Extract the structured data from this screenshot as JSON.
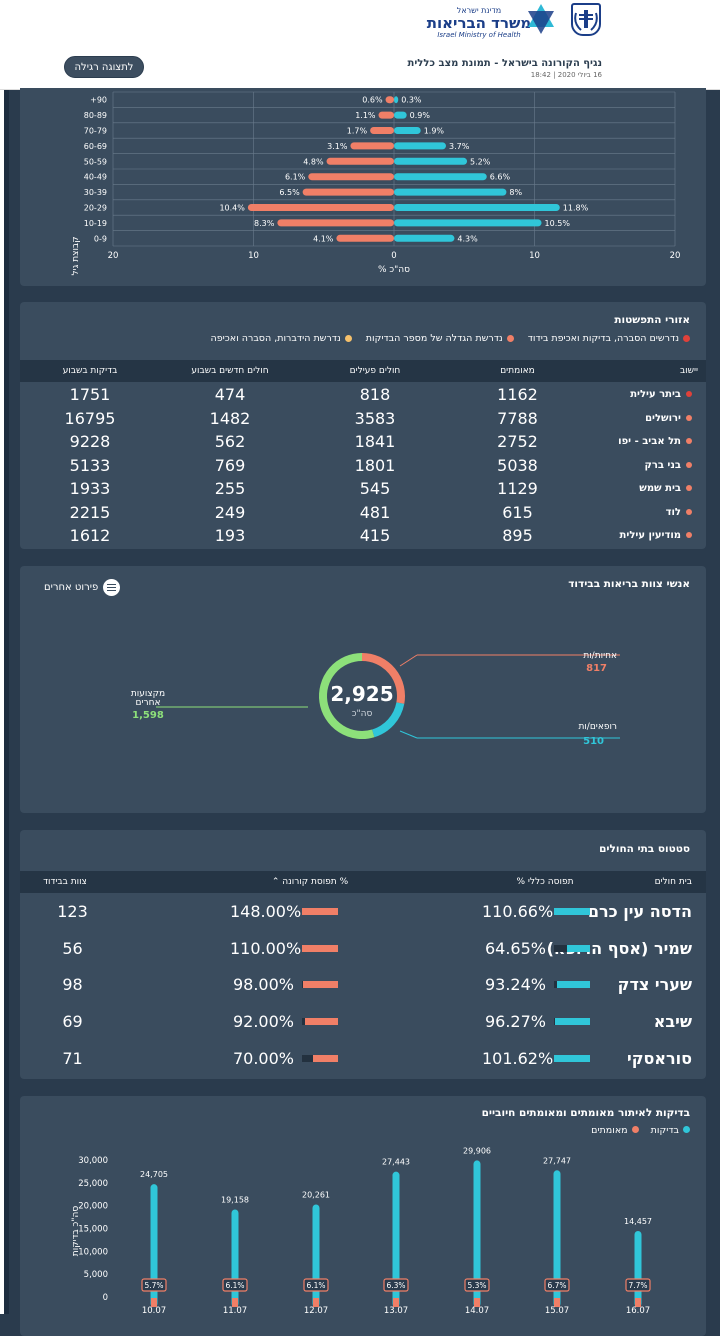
{
  "header": {
    "simple_view_button": "לתצוגה רגילה",
    "title": "נגיף הקורונה בישראל - תמונת מצב כללית",
    "subtitle": "16 ביולי 2020 | 18:42",
    "logo_state": "מדינת ישראל",
    "logo_ministry": "משרד הבריאות",
    "logo_english": "Israel Ministry of Health"
  },
  "age_chart": {
    "ylabel": "קבוצת גיל",
    "xlabel": "% סה\"כ",
    "chart_data": {
      "type": "bar",
      "orientation": "horizontal-diverging",
      "categories": [
        "+90",
        "80-89",
        "70-79",
        "60-69",
        "50-59",
        "40-49",
        "30-39",
        "20-29",
        "10-19",
        "0-9"
      ],
      "series": [
        {
          "values": [
            0.6,
            1.1,
            1.7,
            3.1,
            4.8,
            6.1,
            6.5,
            10.4,
            8.3,
            4.1
          ],
          "color": "#f07f67"
        },
        {
          "values": [
            0.3,
            0.9,
            1.9,
            3.7,
            5.2,
            6.6,
            8,
            11.8,
            10.5,
            4.3
          ],
          "color": "#30c6d9"
        }
      ],
      "xticks": [
        "20",
        "10",
        "0",
        "10",
        "20"
      ],
      "xlim": [
        -20,
        20
      ],
      "grid": true
    }
  },
  "spread": {
    "title": "אזורי התפשטות",
    "legend": [
      {
        "label": "נדרשים הסברה, בדיקות ואכיפת בידוד",
        "color": "#e0413a"
      },
      {
        "label": "נדרשת הגדלה של מספר הבדיקות",
        "color": "#f07f67"
      },
      {
        "label": "נדרשת הידברות, הסברה ואכיפה",
        "color": "#f5c06b"
      }
    ],
    "columns": [
      "יישוב",
      "מאומתים",
      "חולים פעילים",
      "חולים חדשים בשבוע",
      "בדיקות בשבוע"
    ],
    "rows": [
      {
        "name": "ביתר עילית",
        "confirmed": "1162",
        "active": "818",
        "new_week": "474",
        "tests_week": "1751",
        "color": "#e0413a"
      },
      {
        "name": "ירושלים",
        "confirmed": "7788",
        "active": "3583",
        "new_week": "1482",
        "tests_week": "16795",
        "color": "#f07f67"
      },
      {
        "name": "תל אביב - יפו",
        "confirmed": "2752",
        "active": "1841",
        "new_week": "562",
        "tests_week": "9228",
        "color": "#f07f67"
      },
      {
        "name": "בני ברק",
        "confirmed": "5038",
        "active": "1801",
        "new_week": "769",
        "tests_week": "5133",
        "color": "#f07f67"
      },
      {
        "name": "בית שמש",
        "confirmed": "1129",
        "active": "545",
        "new_week": "255",
        "tests_week": "1933",
        "color": "#f07f67"
      },
      {
        "name": "לוד",
        "confirmed": "615",
        "active": "481",
        "new_week": "249",
        "tests_week": "2215",
        "color": "#f07f67"
      },
      {
        "name": "מודיעין עילית",
        "confirmed": "895",
        "active": "415",
        "new_week": "193",
        "tests_week": "1612",
        "color": "#f07f67"
      }
    ]
  },
  "staff": {
    "title": "אנשי צוות בריאות בבידוד",
    "others_button": "פירוט אחרים",
    "total": "2,925",
    "total_label": "סה\"כ",
    "nurses_label": "אחיות/ות",
    "nurses_value": "817",
    "doctors_label": "רופאים/ות",
    "doctors_value": "510",
    "others_label_1": "מקצועות",
    "others_label_2": "אחרים",
    "others_value": "1,598",
    "chart_data": {
      "type": "pie",
      "values": [
        817,
        510,
        1598
      ],
      "colors": [
        "#f07f67",
        "#30c6d9",
        "#8de07a"
      ]
    }
  },
  "hospitals": {
    "title": "סטטוס בתי החולים",
    "columns": [
      "בית חולים",
      "% תפוסה כללי",
      "% תפוסת קורונה",
      "צוות בבידוד"
    ],
    "corona_sort": "⌃",
    "rows": [
      {
        "name": "הדסה עין כרם",
        "general": "110.66%",
        "general_fill": 1.0,
        "corona": "148.00%",
        "corona_fill": 1.0,
        "staff": "123"
      },
      {
        "name": "שמיר (אסף הרופא)",
        "general": "64.65%",
        "general_fill": 0.65,
        "corona": "110.00%",
        "corona_fill": 1.0,
        "staff": "56"
      },
      {
        "name": "שערי צדק",
        "general": "93.24%",
        "general_fill": 0.93,
        "corona": "98.00%",
        "corona_fill": 0.98,
        "staff": "98"
      },
      {
        "name": "שיבא",
        "general": "96.27%",
        "general_fill": 0.96,
        "corona": "92.00%",
        "corona_fill": 0.92,
        "staff": "69"
      },
      {
        "name": "סוראסקי",
        "general": "101.62%",
        "general_fill": 1.0,
        "corona": "70.00%",
        "corona_fill": 0.7,
        "staff": "71"
      }
    ]
  },
  "tests": {
    "title": "בדיקות לאיתור מאומתים ומאומתים חיוביים",
    "legend_tests": "בדיקות",
    "legend_confirmed": "מאומתים",
    "ylabel": "סה\"כ בדיקות",
    "chart_data": {
      "type": "bar",
      "categories": [
        "10.07",
        "11.07",
        "12.07",
        "13.07",
        "14.07",
        "15.07",
        "16.07"
      ],
      "series": [
        {
          "name": "בדיקות",
          "values": [
            24705,
            19158,
            20261,
            27443,
            29906,
            27747,
            14457
          ],
          "labels": [
            "24,705",
            "19,158",
            "20,261",
            "27,443",
            "29,906",
            "27,747",
            "14,457"
          ],
          "color": "#30c6d9"
        },
        {
          "name": "מאומתים",
          "percent_labels": [
            "5.7%",
            "6.1%",
            "6.1%",
            "6.3%",
            "5.3%",
            "6.7%",
            "7.7%"
          ],
          "color": "#f07f67"
        }
      ],
      "yticks": [
        "30,000",
        "25,000",
        "20,000",
        "15,000",
        "10,000",
        "5,000",
        "0"
      ],
      "ylim": [
        0,
        30000
      ]
    }
  }
}
